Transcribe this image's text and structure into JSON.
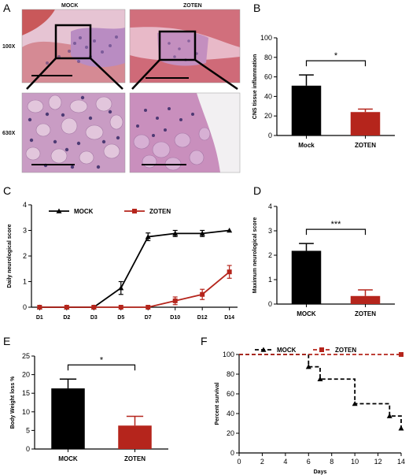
{
  "panel_a": {
    "letter": "A",
    "column_labels": [
      "MOCK",
      "ZOTEN"
    ],
    "row_labels": [
      "100X",
      "630X"
    ]
  },
  "colors": {
    "mock": "#000000",
    "zoten": "#b5251c",
    "tissue_pink": "#d7a0b8",
    "tissue_red": "#c9585a",
    "nuclei": "#3b2a6e"
  },
  "chart_data": [
    {
      "id": "B",
      "letter": "B",
      "type": "bar",
      "categories": [
        "Mock",
        "ZOTEN"
      ],
      "series": [
        {
          "values": [
            51,
            24
          ],
          "errors": [
            11,
            3
          ]
        }
      ],
      "ylabel": "CNS tissue inflammation",
      "xlabel": "",
      "ylim": [
        0,
        100
      ],
      "yticks": [
        0,
        20,
        40,
        60,
        80,
        100
      ],
      "significance": "*",
      "bar_colors": [
        "#000000",
        "#b5251c"
      ],
      "grid": false
    },
    {
      "id": "C",
      "letter": "C",
      "type": "line",
      "categories": [
        "D1",
        "D2",
        "D3",
        "D5",
        "D7",
        "D10",
        "D12",
        "D14"
      ],
      "series": [
        {
          "name": "MOCK",
          "marker": "triangle",
          "color": "#000000",
          "values": [
            0,
            0,
            0,
            0.75,
            2.75,
            2.88,
            2.88,
            3.0
          ],
          "errors": [
            0,
            0,
            0,
            0.25,
            0.15,
            0.12,
            0.12,
            0
          ]
        },
        {
          "name": "ZOTEN",
          "marker": "square",
          "color": "#b5251c",
          "values": [
            0,
            0,
            0,
            0,
            0,
            0.25,
            0.5,
            1.38
          ],
          "errors": [
            0,
            0,
            0,
            0,
            0,
            0.15,
            0.2,
            0.25
          ]
        }
      ],
      "ylabel": "Daily neurological score",
      "xlabel": "",
      "ylim": [
        0,
        4
      ],
      "yticks": [
        0,
        1,
        2,
        3,
        4
      ],
      "legend": "top",
      "grid": false
    },
    {
      "id": "D",
      "letter": "D",
      "type": "bar",
      "categories": [
        "MOCK",
        "ZOTEN"
      ],
      "series": [
        {
          "values": [
            2.18,
            0.33
          ],
          "errors": [
            0.3,
            0.25
          ]
        }
      ],
      "ylabel": "Maximum neurological score",
      "xlabel": "",
      "ylim": [
        0,
        4
      ],
      "yticks": [
        0,
        1,
        2,
        3,
        4
      ],
      "significance": "***",
      "bar_colors": [
        "#000000",
        "#b5251c"
      ],
      "grid": false
    },
    {
      "id": "E",
      "letter": "E",
      "type": "bar",
      "categories": [
        "MOCK",
        "ZOTEN"
      ],
      "series": [
        {
          "values": [
            16.3,
            6.3
          ],
          "errors": [
            2.5,
            2.5
          ]
        }
      ],
      "ylabel": "Body Weight loss %",
      "xlabel": "",
      "ylim": [
        0,
        25
      ],
      "yticks": [
        0,
        5,
        10,
        15,
        20,
        25
      ],
      "significance": "*",
      "bar_colors": [
        "#000000",
        "#b5251c"
      ],
      "grid": false
    },
    {
      "id": "F",
      "letter": "F",
      "type": "line",
      "step": true,
      "series": [
        {
          "name": "MOCK",
          "marker": "triangle",
          "color": "#000000",
          "x": [
            0,
            6,
            6,
            7,
            7,
            10,
            10,
            13,
            13,
            14,
            14
          ],
          "values": [
            100,
            100,
            87.5,
            87.5,
            75,
            75,
            50,
            50,
            37.5,
            37.5,
            25
          ],
          "marker_x": [
            6,
            7,
            10,
            13,
            14
          ],
          "marker_y": [
            87.5,
            75,
            50,
            37.5,
            25
          ]
        },
        {
          "name": "ZOTEN",
          "marker": "square",
          "color": "#b5251c",
          "x": [
            0,
            14
          ],
          "values": [
            100,
            100
          ],
          "marker_x": [
            14
          ],
          "marker_y": [
            100
          ]
        }
      ],
      "ylabel": "Percent survival",
      "xlabel": "Days",
      "xlim": [
        0,
        14
      ],
      "xticks": [
        0,
        2,
        4,
        6,
        8,
        10,
        12,
        14
      ],
      "ylim": [
        0,
        100
      ],
      "yticks": [
        0,
        20,
        40,
        60,
        80,
        100
      ],
      "legend": "top",
      "grid": false
    }
  ]
}
